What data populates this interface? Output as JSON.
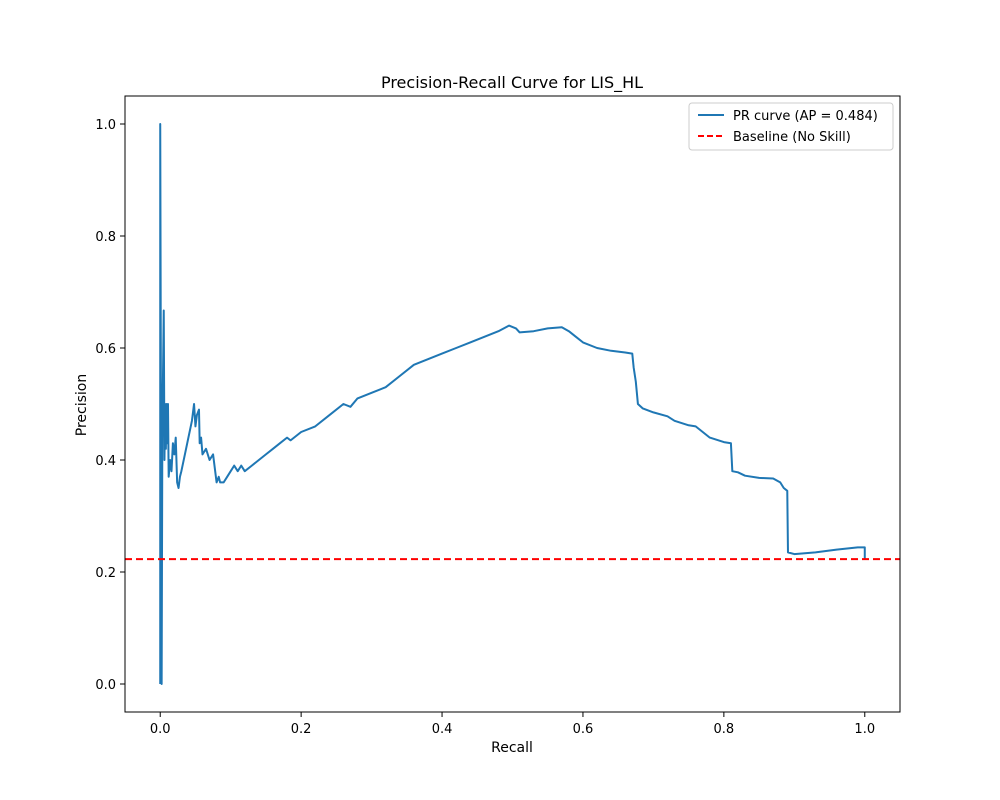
{
  "chart_data": {
    "type": "line",
    "title": "Precision-Recall Curve for LIS_HL",
    "xlabel": "Recall",
    "ylabel": "Precision",
    "xlim": [
      -0.05,
      1.05
    ],
    "ylim": [
      -0.05,
      1.05
    ],
    "xticks": [
      0.0,
      0.2,
      0.4,
      0.6,
      0.8,
      1.0
    ],
    "xtick_labels": [
      "0.0",
      "0.2",
      "0.4",
      "0.6",
      "0.8",
      "1.0"
    ],
    "yticks": [
      0.0,
      0.2,
      0.4,
      0.6,
      0.8,
      1.0
    ],
    "ytick_labels": [
      "0.0",
      "0.2",
      "0.4",
      "0.6",
      "0.8",
      "1.0"
    ],
    "grid": false,
    "legend_position": "top-right",
    "series": [
      {
        "name": "PR curve (AP = 0.484)",
        "color": "#1f77b4",
        "style": "solid",
        "points": [
          [
            0.0,
            0.0
          ],
          [
            0.0,
            1.0
          ],
          [
            0.002,
            0.0
          ],
          [
            0.003,
            0.45
          ],
          [
            0.005,
            0.667
          ],
          [
            0.006,
            0.4
          ],
          [
            0.007,
            0.5
          ],
          [
            0.008,
            0.42
          ],
          [
            0.009,
            0.5
          ],
          [
            0.01,
            0.43
          ],
          [
            0.011,
            0.5
          ],
          [
            0.012,
            0.37
          ],
          [
            0.014,
            0.4
          ],
          [
            0.016,
            0.38
          ],
          [
            0.018,
            0.43
          ],
          [
            0.02,
            0.41
          ],
          [
            0.022,
            0.44
          ],
          [
            0.024,
            0.36
          ],
          [
            0.026,
            0.35
          ],
          [
            0.028,
            0.37
          ],
          [
            0.03,
            0.38
          ],
          [
            0.035,
            0.41
          ],
          [
            0.04,
            0.44
          ],
          [
            0.045,
            0.47
          ],
          [
            0.048,
            0.5
          ],
          [
            0.05,
            0.46
          ],
          [
            0.052,
            0.48
          ],
          [
            0.055,
            0.49
          ],
          [
            0.056,
            0.43
          ],
          [
            0.058,
            0.44
          ],
          [
            0.06,
            0.41
          ],
          [
            0.065,
            0.42
          ],
          [
            0.07,
            0.4
          ],
          [
            0.075,
            0.41
          ],
          [
            0.08,
            0.36
          ],
          [
            0.083,
            0.37
          ],
          [
            0.085,
            0.36
          ],
          [
            0.09,
            0.36
          ],
          [
            0.095,
            0.37
          ],
          [
            0.1,
            0.38
          ],
          [
            0.105,
            0.39
          ],
          [
            0.11,
            0.38
          ],
          [
            0.115,
            0.39
          ],
          [
            0.12,
            0.38
          ],
          [
            0.13,
            0.39
          ],
          [
            0.14,
            0.4
          ],
          [
            0.15,
            0.41
          ],
          [
            0.16,
            0.42
          ],
          [
            0.17,
            0.43
          ],
          [
            0.18,
            0.44
          ],
          [
            0.185,
            0.435
          ],
          [
            0.2,
            0.45
          ],
          [
            0.22,
            0.46
          ],
          [
            0.24,
            0.48
          ],
          [
            0.26,
            0.5
          ],
          [
            0.27,
            0.495
          ],
          [
            0.28,
            0.51
          ],
          [
            0.3,
            0.52
          ],
          [
            0.32,
            0.53
          ],
          [
            0.34,
            0.55
          ],
          [
            0.36,
            0.57
          ],
          [
            0.38,
            0.58
          ],
          [
            0.4,
            0.59
          ],
          [
            0.42,
            0.6
          ],
          [
            0.44,
            0.61
          ],
          [
            0.46,
            0.62
          ],
          [
            0.48,
            0.63
          ],
          [
            0.495,
            0.64
          ],
          [
            0.505,
            0.635
          ],
          [
            0.51,
            0.628
          ],
          [
            0.53,
            0.63
          ],
          [
            0.55,
            0.635
          ],
          [
            0.57,
            0.637
          ],
          [
            0.58,
            0.63
          ],
          [
            0.59,
            0.62
          ],
          [
            0.6,
            0.61
          ],
          [
            0.62,
            0.6
          ],
          [
            0.64,
            0.595
          ],
          [
            0.66,
            0.592
          ],
          [
            0.67,
            0.59
          ],
          [
            0.672,
            0.565
          ],
          [
            0.675,
            0.54
          ],
          [
            0.678,
            0.5
          ],
          [
            0.685,
            0.492
          ],
          [
            0.7,
            0.485
          ],
          [
            0.72,
            0.478
          ],
          [
            0.73,
            0.47
          ],
          [
            0.75,
            0.462
          ],
          [
            0.76,
            0.46
          ],
          [
            0.78,
            0.44
          ],
          [
            0.8,
            0.432
          ],
          [
            0.81,
            0.43
          ],
          [
            0.812,
            0.38
          ],
          [
            0.82,
            0.378
          ],
          [
            0.83,
            0.372
          ],
          [
            0.85,
            0.368
          ],
          [
            0.87,
            0.367
          ],
          [
            0.88,
            0.36
          ],
          [
            0.885,
            0.35
          ],
          [
            0.89,
            0.345
          ],
          [
            0.891,
            0.235
          ],
          [
            0.9,
            0.232
          ],
          [
            0.93,
            0.235
          ],
          [
            0.96,
            0.24
          ],
          [
            0.99,
            0.244
          ],
          [
            1.0,
            0.244
          ],
          [
            1.0,
            0.223
          ]
        ]
      },
      {
        "name": "Baseline (No Skill)",
        "color": "#ff0000",
        "style": "dashed",
        "y": 0.223
      }
    ]
  }
}
